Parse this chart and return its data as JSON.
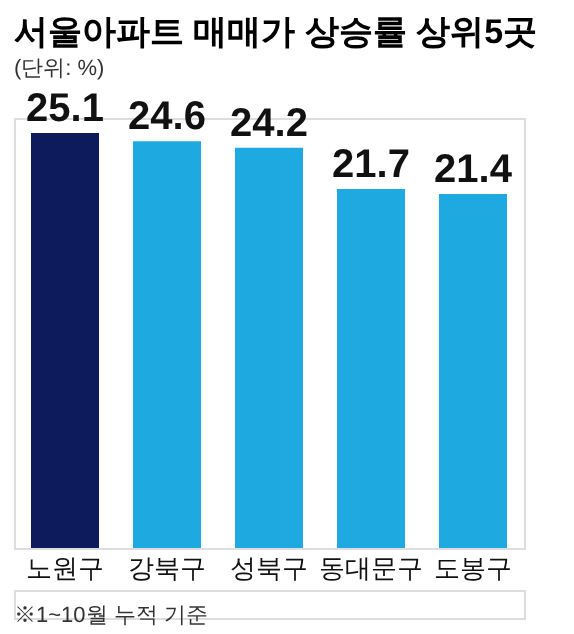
{
  "chart_data": {
    "type": "bar",
    "title": "서울아파트 매매가 상승률 상위5곳",
    "subtitle": "(단위: %)",
    "categories": [
      "노원구",
      "강북구",
      "성북구",
      "동대문구",
      "도봉구"
    ],
    "values": [
      25.1,
      24.6,
      24.2,
      21.7,
      21.4
    ],
    "colors": [
      "#0d1a5c",
      "#1fa9e1",
      "#1fa9e1",
      "#1fa9e1",
      "#1fa9e1"
    ],
    "data_labels": true,
    "annotations": [
      "※1~10월 누적 기준"
    ]
  }
}
